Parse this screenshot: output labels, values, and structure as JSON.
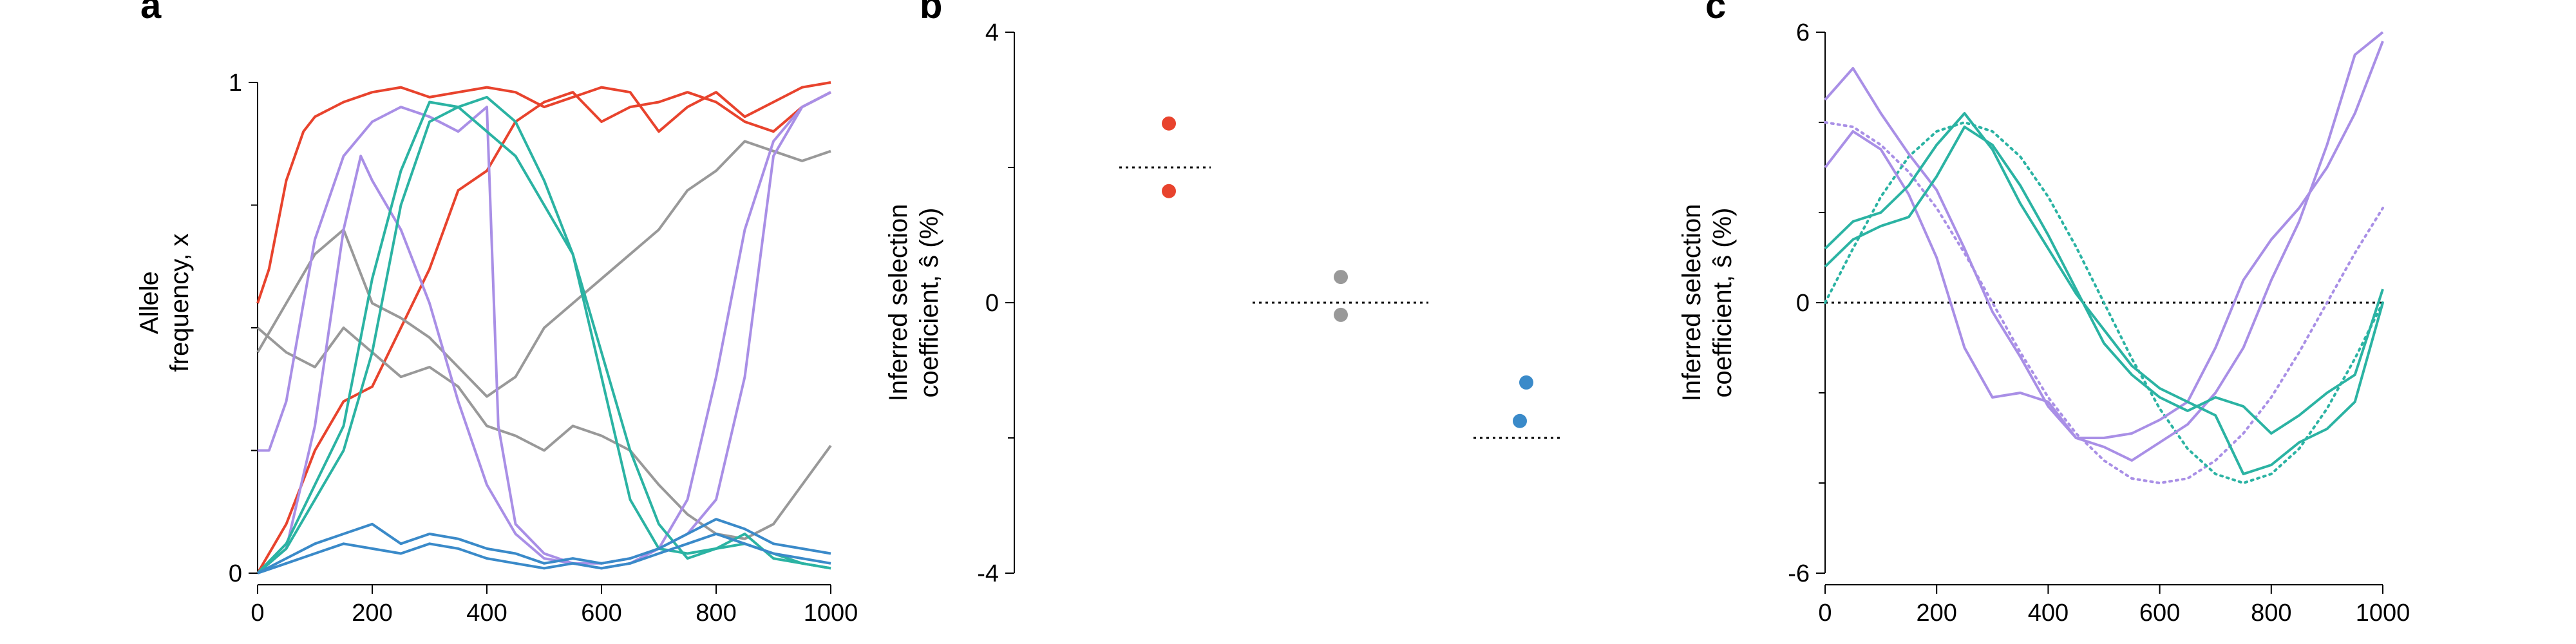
{
  "chart_data": [
    {
      "panel_label": "a",
      "type": "line",
      "ylabel_lines": [
        "Allele",
        "frequency, x"
      ],
      "xlim": [
        0,
        1000
      ],
      "ylim": [
        0,
        1
      ],
      "xticks": [
        0,
        200,
        400,
        600,
        800,
        1000
      ],
      "yticks": [
        0,
        1
      ],
      "ytick_labels": [
        "0",
        "1"
      ],
      "minor_yticks": [
        0.25,
        0.5,
        0.75
      ],
      "colors": {
        "red": "#e8432d",
        "gray": "#999999",
        "purple": "#a98fe6",
        "teal": "#2bb3a3",
        "blue": "#3a8ac9"
      },
      "series": [
        {
          "color_key": "red",
          "x": [
            0,
            20,
            50,
            80,
            100,
            150,
            200,
            250,
            300,
            350,
            400,
            450,
            500,
            550,
            600,
            650,
            700,
            750,
            800,
            850,
            900,
            950,
            1000
          ],
          "y": [
            0.55,
            0.62,
            0.8,
            0.9,
            0.93,
            0.96,
            0.98,
            0.99,
            0.97,
            0.98,
            0.99,
            0.98,
            0.95,
            0.97,
            0.99,
            0.98,
            0.9,
            0.95,
            0.98,
            0.93,
            0.96,
            0.99,
            1.0
          ]
        },
        {
          "color_key": "red",
          "x": [
            0,
            50,
            100,
            150,
            200,
            250,
            300,
            350,
            400,
            450,
            500,
            550,
            600,
            650,
            700,
            750,
            800,
            850,
            900,
            950,
            1000
          ],
          "y": [
            0.0,
            0.1,
            0.25,
            0.35,
            0.38,
            0.5,
            0.62,
            0.78,
            0.82,
            0.92,
            0.96,
            0.98,
            0.92,
            0.95,
            0.96,
            0.98,
            0.96,
            0.92,
            0.9,
            0.95,
            0.98
          ]
        },
        {
          "color_key": "gray",
          "x": [
            0,
            50,
            100,
            150,
            200,
            250,
            300,
            350,
            400,
            450,
            500,
            550,
            600,
            650,
            700,
            750,
            800,
            850,
            900,
            950,
            1000
          ],
          "y": [
            0.45,
            0.55,
            0.65,
            0.7,
            0.55,
            0.52,
            0.48,
            0.42,
            0.36,
            0.4,
            0.5,
            0.55,
            0.6,
            0.65,
            0.7,
            0.78,
            0.82,
            0.88,
            0.86,
            0.84,
            0.86
          ]
        },
        {
          "color_key": "gray",
          "x": [
            0,
            50,
            100,
            150,
            200,
            250,
            300,
            350,
            400,
            450,
            500,
            550,
            600,
            650,
            700,
            750,
            800,
            850,
            900,
            950,
            1000
          ],
          "y": [
            0.5,
            0.45,
            0.42,
            0.5,
            0.45,
            0.4,
            0.42,
            0.38,
            0.3,
            0.28,
            0.25,
            0.3,
            0.28,
            0.25,
            0.18,
            0.12,
            0.08,
            0.07,
            0.1,
            0.18,
            0.26
          ]
        },
        {
          "color_key": "purple",
          "x": [
            0,
            20,
            50,
            80,
            100,
            150,
            200,
            250,
            300,
            350,
            400,
            420,
            450,
            500,
            550,
            600,
            650,
            700,
            750,
            800,
            850,
            900,
            950,
            1000
          ],
          "y": [
            0.25,
            0.25,
            0.35,
            0.55,
            0.68,
            0.85,
            0.92,
            0.95,
            0.93,
            0.9,
            0.95,
            0.3,
            0.1,
            0.04,
            0.02,
            0.02,
            0.03,
            0.05,
            0.08,
            0.15,
            0.4,
            0.85,
            0.95,
            0.98
          ]
        },
        {
          "color_key": "purple",
          "x": [
            0,
            50,
            100,
            150,
            180,
            200,
            250,
            300,
            350,
            400,
            450,
            500,
            550,
            600,
            650,
            700,
            750,
            800,
            850,
            900,
            950,
            1000
          ],
          "y": [
            0.0,
            0.05,
            0.3,
            0.7,
            0.85,
            0.8,
            0.7,
            0.55,
            0.35,
            0.18,
            0.08,
            0.03,
            0.02,
            0.01,
            0.02,
            0.05,
            0.15,
            0.4,
            0.7,
            0.88,
            0.95,
            0.98
          ]
        },
        {
          "color_key": "teal",
          "x": [
            0,
            50,
            100,
            150,
            200,
            250,
            300,
            350,
            400,
            450,
            500,
            550,
            600,
            650,
            700,
            750,
            800,
            850,
            900,
            950,
            1000
          ],
          "y": [
            0.0,
            0.05,
            0.15,
            0.25,
            0.45,
            0.75,
            0.92,
            0.95,
            0.9,
            0.85,
            0.75,
            0.65,
            0.4,
            0.15,
            0.05,
            0.04,
            0.05,
            0.06,
            0.04,
            0.02,
            0.01
          ]
        },
        {
          "color_key": "teal",
          "x": [
            0,
            50,
            100,
            150,
            200,
            250,
            300,
            350,
            400,
            450,
            500,
            550,
            600,
            650,
            700,
            750,
            800,
            850,
            900,
            950,
            1000
          ],
          "y": [
            0.0,
            0.06,
            0.18,
            0.3,
            0.6,
            0.82,
            0.96,
            0.95,
            0.97,
            0.92,
            0.8,
            0.65,
            0.45,
            0.25,
            0.1,
            0.03,
            0.05,
            0.08,
            0.03,
            0.02,
            0.01
          ]
        },
        {
          "color_key": "blue",
          "x": [
            0,
            50,
            100,
            150,
            200,
            250,
            300,
            350,
            400,
            450,
            500,
            550,
            600,
            650,
            700,
            750,
            800,
            850,
            900,
            950,
            1000
          ],
          "y": [
            0.0,
            0.03,
            0.06,
            0.08,
            0.1,
            0.06,
            0.08,
            0.07,
            0.05,
            0.04,
            0.02,
            0.03,
            0.02,
            0.03,
            0.05,
            0.08,
            0.11,
            0.09,
            0.06,
            0.05,
            0.04
          ]
        },
        {
          "color_key": "blue",
          "x": [
            0,
            50,
            100,
            150,
            200,
            250,
            300,
            350,
            400,
            450,
            500,
            550,
            600,
            650,
            700,
            750,
            800,
            850,
            900,
            950,
            1000
          ],
          "y": [
            0.0,
            0.02,
            0.04,
            0.06,
            0.05,
            0.04,
            0.06,
            0.05,
            0.03,
            0.02,
            0.01,
            0.02,
            0.01,
            0.02,
            0.04,
            0.06,
            0.08,
            0.06,
            0.04,
            0.03,
            0.02
          ]
        }
      ]
    },
    {
      "panel_label": "b",
      "type": "scatter",
      "ylabel_lines": [
        "Inferred selection",
        "coefficient, ŝ (%)"
      ],
      "ylim": [
        -4,
        4
      ],
      "yticks": [
        -4,
        0,
        4
      ],
      "ytick_labels": [
        "-4",
        "0",
        "4"
      ],
      "minor_yticks": [
        -2,
        2
      ],
      "groups": [
        {
          "color_key": "red",
          "true_s": 2.0,
          "inferred": [
            2.65,
            1.65
          ]
        },
        {
          "color_key": "gray",
          "true_s": 0.0,
          "inferred": [
            0.38,
            -0.18
          ]
        },
        {
          "color_key": "blue",
          "true_s": -2.0,
          "inferred": [
            -1.18,
            -1.75
          ]
        }
      ]
    },
    {
      "panel_label": "c",
      "type": "line",
      "ylabel_lines": [
        "Inferred selection",
        "coefficient, ŝ (%)"
      ],
      "xlim": [
        0,
        1000
      ],
      "ylim": [
        -6,
        6
      ],
      "xticks": [
        0,
        200,
        400,
        600,
        800,
        1000
      ],
      "yticks": [
        -6,
        0,
        6
      ],
      "ytick_labels": [
        "-6",
        "0",
        "6"
      ],
      "minor_yticks": [
        -4,
        -2,
        2,
        4
      ],
      "true_curves": [
        {
          "color_key": "purple",
          "x": [
            0,
            50,
            100,
            150,
            200,
            250,
            300,
            350,
            400,
            450,
            500,
            550,
            600,
            650,
            700,
            750,
            800,
            850,
            900,
            950,
            1000
          ],
          "y": [
            4.0,
            3.9,
            3.5,
            2.9,
            2.1,
            1.1,
            0.0,
            -1.1,
            -2.1,
            -2.9,
            -3.5,
            -3.9,
            -4.0,
            -3.9,
            -3.5,
            -2.9,
            -2.1,
            -1.1,
            0.0,
            1.1,
            2.1
          ]
        },
        {
          "color_key": "teal",
          "x": [
            0,
            50,
            100,
            150,
            200,
            250,
            300,
            350,
            400,
            450,
            500,
            550,
            600,
            650,
            700,
            750,
            800,
            850,
            900,
            950,
            1000
          ],
          "y": [
            0.0,
            1.2,
            2.35,
            3.24,
            3.8,
            4.0,
            3.8,
            3.24,
            2.35,
            1.24,
            0.0,
            -1.24,
            -2.35,
            -3.24,
            -3.8,
            -4.0,
            -3.8,
            -3.24,
            -2.35,
            -1.24,
            0.0
          ]
        }
      ],
      "inferred_curves": [
        {
          "color_key": "purple",
          "x": [
            0,
            50,
            100,
            150,
            200,
            250,
            300,
            350,
            400,
            450,
            500,
            550,
            600,
            650,
            700,
            750,
            800,
            850,
            900,
            950,
            1000
          ],
          "y": [
            4.5,
            5.2,
            4.2,
            3.3,
            2.5,
            1.2,
            -0.2,
            -1.2,
            -2.3,
            -3.0,
            -3.2,
            -3.5,
            -3.1,
            -2.7,
            -2.0,
            -1.0,
            0.5,
            1.8,
            3.5,
            5.5,
            7.2
          ]
        },
        {
          "color_key": "purple",
          "x": [
            0,
            50,
            100,
            150,
            200,
            250,
            300,
            350,
            400,
            450,
            500,
            550,
            600,
            650,
            700,
            750,
            800,
            850,
            900,
            950,
            1000
          ],
          "y": [
            3.0,
            3.8,
            3.4,
            2.4,
            1.0,
            -1.0,
            -2.1,
            -2.0,
            -2.2,
            -3.0,
            -3.0,
            -2.9,
            -2.6,
            -2.2,
            -1.0,
            0.5,
            1.4,
            2.1,
            3.0,
            4.2,
            5.8
          ]
        },
        {
          "color_key": "teal",
          "x": [
            0,
            50,
            100,
            150,
            200,
            250,
            300,
            350,
            400,
            450,
            500,
            550,
            600,
            650,
            700,
            750,
            800,
            850,
            900,
            950,
            1000
          ],
          "y": [
            1.2,
            1.8,
            2.0,
            2.6,
            3.5,
            4.2,
            3.4,
            2.2,
            1.2,
            0.2,
            -0.6,
            -1.4,
            -1.9,
            -2.2,
            -2.5,
            -3.8,
            -3.6,
            -3.1,
            -2.8,
            -2.2,
            0.0
          ]
        },
        {
          "color_key": "teal",
          "x": [
            0,
            50,
            100,
            150,
            200,
            250,
            300,
            350,
            400,
            450,
            500,
            550,
            600,
            650,
            700,
            750,
            800,
            850,
            900,
            950,
            1000
          ],
          "y": [
            0.8,
            1.4,
            1.7,
            1.9,
            2.8,
            3.9,
            3.5,
            2.6,
            1.5,
            0.3,
            -0.9,
            -1.6,
            -2.1,
            -2.4,
            -2.1,
            -2.3,
            -2.9,
            -2.5,
            -2.0,
            -1.6,
            0.3
          ]
        }
      ]
    }
  ]
}
